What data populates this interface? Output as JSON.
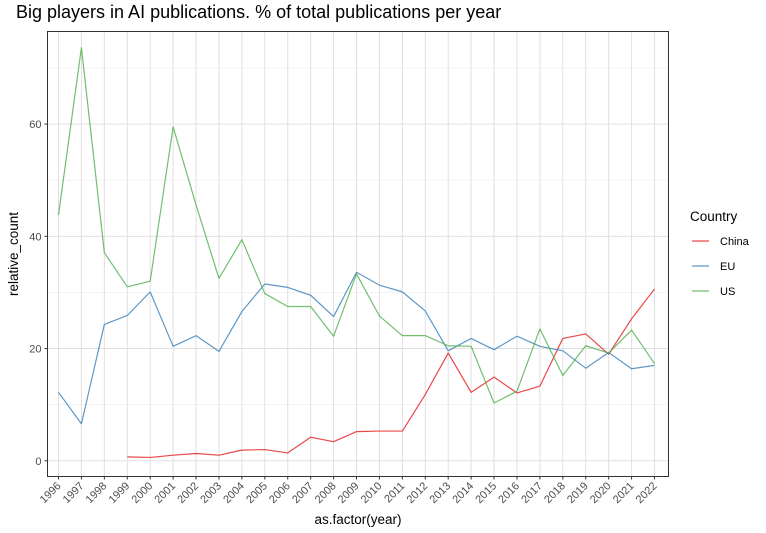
{
  "chart_data": {
    "type": "line",
    "title": "Big players in AI publications. % of total publications per year",
    "xlabel": "as.factor(year)",
    "ylabel": "relative_count",
    "ylim": [
      -2.8,
      76.5
    ],
    "yticks": [
      0,
      20,
      40,
      60
    ],
    "grid": true,
    "legend": {
      "title": "Country",
      "position": "right"
    },
    "categories": [
      "1996",
      "1997",
      "1998",
      "1999",
      "2000",
      "2001",
      "2002",
      "2003",
      "2004",
      "2005",
      "2006",
      "2007",
      "2008",
      "2009",
      "2010",
      "2011",
      "2012",
      "2013",
      "2014",
      "2015",
      "2016",
      "2017",
      "2018",
      "2019",
      "2020",
      "2021",
      "2022"
    ],
    "series": [
      {
        "name": "China",
        "color": "#E41A1C",
        "values": [
          null,
          null,
          null,
          0.7,
          0.6,
          1.0,
          1.3,
          1.0,
          1.9,
          2.0,
          1.4,
          4.2,
          3.4,
          5.2,
          5.3,
          5.3,
          11.8,
          19.2,
          12.2,
          14.9,
          12.1,
          13.3,
          21.8,
          22.6,
          19.0,
          25.3,
          30.6
        ]
      },
      {
        "name": "EU",
        "color": "#377EB8",
        "values": [
          12.2,
          6.6,
          24.3,
          25.9,
          30.1,
          20.4,
          22.3,
          19.5,
          26.6,
          31.5,
          30.9,
          29.5,
          25.7,
          33.6,
          31.3,
          30.1,
          26.7,
          19.6,
          21.8,
          19.8,
          22.2,
          20.4,
          19.6,
          16.5,
          19.3,
          16.4,
          17.0
        ]
      },
      {
        "name": "US",
        "color": "#4DAF4A",
        "values": [
          43.8,
          73.6,
          37.1,
          31.0,
          32.0,
          59.5,
          45.6,
          32.5,
          39.4,
          29.8,
          27.5,
          27.5,
          22.2,
          33.3,
          25.8,
          22.3,
          22.3,
          20.5,
          20.4,
          10.3,
          12.4,
          23.5,
          15.2,
          20.5,
          19.2,
          23.3,
          17.3
        ]
      }
    ]
  }
}
